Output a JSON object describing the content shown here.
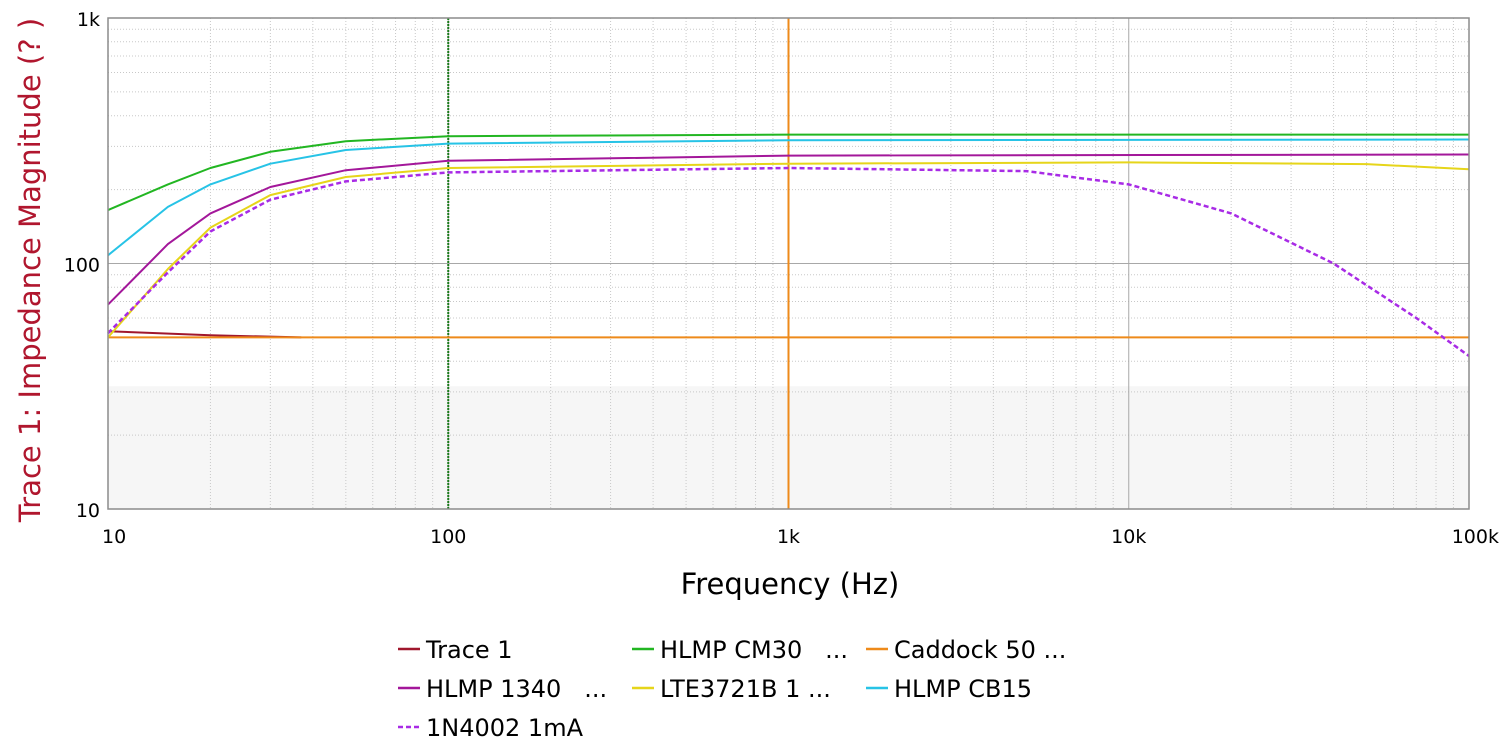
{
  "chart_data": {
    "type": "line",
    "xlabel": "Frequency (Hz)",
    "ylabel": "Trace 1: Impedance Magnitude (? )",
    "x_scale": "log",
    "y_scale": "log",
    "xlim": [
      10,
      100000
    ],
    "ylim": [
      10,
      1000
    ],
    "grid": true,
    "legend_position": "bottom",
    "x_ticks": [
      {
        "value": 10,
        "label": "10"
      },
      {
        "value": 100,
        "label": "100"
      },
      {
        "value": 1000,
        "label": "1k"
      },
      {
        "value": 10000,
        "label": "10k"
      },
      {
        "value": 100000,
        "label": "100k"
      }
    ],
    "y_ticks": [
      {
        "value": 10,
        "label": "10"
      },
      {
        "value": 100,
        "label": "100"
      },
      {
        "value": 1000,
        "label": "1k"
      }
    ],
    "markers": [
      {
        "x": 100,
        "color": "#1a7a1a",
        "style": "dotted"
      },
      {
        "x": 1000,
        "color": "#ee8a1a",
        "style": "solid"
      }
    ],
    "series": [
      {
        "name": "Trace 1",
        "color": "#a0172d",
        "dash": false,
        "x": [
          10,
          20,
          37
        ],
        "y": [
          53,
          51,
          50
        ]
      },
      {
        "name": "HLMP CM30   ...",
        "color": "#22b622",
        "dash": false,
        "x": [
          10,
          15,
          20,
          30,
          50,
          100,
          1000,
          10000,
          100000
        ],
        "y": [
          165,
          210,
          245,
          285,
          315,
          330,
          335,
          335,
          335
        ]
      },
      {
        "name": "Caddock 50 ...",
        "color": "#ee8a1a",
        "dash": false,
        "x": [
          10,
          100000
        ],
        "y": [
          50,
          50
        ]
      },
      {
        "name": "HLMP 1340   ...",
        "color": "#a3179a",
        "dash": false,
        "x": [
          10,
          15,
          20,
          30,
          50,
          100,
          1000,
          100000
        ],
        "y": [
          68,
          120,
          160,
          205,
          240,
          262,
          275,
          278
        ]
      },
      {
        "name": "LTE3721B 1 ...",
        "color": "#e6d51a",
        "dash": false,
        "x": [
          10,
          15,
          20,
          30,
          50,
          100,
          1000,
          10000,
          50000,
          100000
        ],
        "y": [
          50,
          95,
          140,
          190,
          225,
          245,
          255,
          258,
          254,
          242
        ]
      },
      {
        "name": "HLMP CB15",
        "color": "#27c3e6",
        "dash": false,
        "x": [
          10,
          15,
          20,
          30,
          50,
          100,
          1000,
          100000
        ],
        "y": [
          108,
          170,
          210,
          255,
          290,
          308,
          318,
          320
        ]
      },
      {
        "name": "1N4002 1mA",
        "color": "#a82be6",
        "dash": true,
        "x": [
          10,
          15,
          20,
          30,
          50,
          100,
          1000,
          5000,
          10000,
          20000,
          40000,
          70000,
          100000
        ],
        "y": [
          52,
          92,
          135,
          182,
          216,
          235,
          245,
          238,
          210,
          160,
          100,
          60,
          42
        ]
      }
    ]
  }
}
